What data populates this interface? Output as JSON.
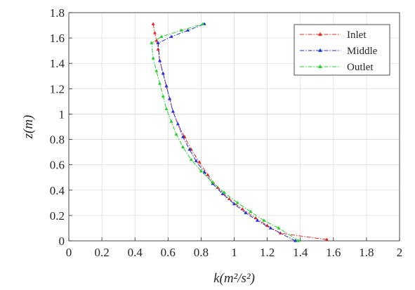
{
  "chart_data": {
    "type": "line",
    "title": "",
    "xlabel": "k(m²/s²)",
    "ylabel": "z(m)",
    "xlim": [
      0,
      2
    ],
    "ylim": [
      0,
      1.8
    ],
    "xticks": [
      0,
      0.2,
      0.4,
      0.6,
      0.8,
      1,
      1.2,
      1.4,
      1.6,
      1.8,
      2
    ],
    "yticks": [
      0,
      0.2,
      0.4,
      0.6,
      0.8,
      1,
      1.2,
      1.4,
      1.6,
      1.8
    ],
    "xtick_labels": [
      "0",
      "0.2",
      "0.4",
      "0.6",
      "0.8",
      "1",
      "1.2",
      "1.4",
      "1.6",
      "1.8",
      "2"
    ],
    "ytick_labels": [
      "0",
      "0.2",
      "0.4",
      "0.6",
      "0.8",
      "1",
      "1.2",
      "1.4",
      "1.6",
      "1.8"
    ],
    "grid": true,
    "legend_position": "top-right",
    "series": [
      {
        "name": "Inlet",
        "color": "#e0271f",
        "marker": "triangle",
        "x": [
          1.56,
          1.28,
          1.2,
          1.13,
          1.05,
          0.97,
          0.9,
          0.84,
          0.79,
          0.74,
          0.7,
          0.66,
          0.63,
          0.61,
          0.59,
          0.57,
          0.55,
          0.54,
          0.53,
          0.52,
          0.51
        ],
        "y": [
          0.01,
          0.06,
          0.12,
          0.18,
          0.25,
          0.33,
          0.42,
          0.52,
          0.62,
          0.72,
          0.82,
          0.92,
          1.02,
          1.12,
          1.22,
          1.32,
          1.42,
          1.51,
          1.58,
          1.64,
          1.71
        ]
      },
      {
        "name": "Middle",
        "color": "#1f2fd4",
        "marker": "triangle",
        "x": [
          1.37,
          1.22,
          1.14,
          1.07,
          1.0,
          0.93,
          0.87,
          0.82,
          0.77,
          0.73,
          0.69,
          0.66,
          0.63,
          0.61,
          0.59,
          0.57,
          0.55,
          0.54,
          0.62,
          0.72,
          0.82
        ],
        "y": [
          0.0,
          0.1,
          0.16,
          0.22,
          0.29,
          0.37,
          0.45,
          0.54,
          0.63,
          0.72,
          0.82,
          0.92,
          1.02,
          1.12,
          1.22,
          1.32,
          1.42,
          1.56,
          1.61,
          1.66,
          1.71
        ]
      },
      {
        "name": "Outlet",
        "color": "#22d02a",
        "marker": "triangle",
        "x": [
          1.39,
          1.27,
          1.18,
          1.1,
          1.02,
          0.94,
          0.87,
          0.8,
          0.74,
          0.69,
          0.65,
          0.62,
          0.59,
          0.57,
          0.55,
          0.53,
          0.51,
          0.5,
          0.56,
          0.68,
          0.81
        ],
        "y": [
          0.0,
          0.1,
          0.16,
          0.23,
          0.3,
          0.38,
          0.46,
          0.55,
          0.64,
          0.74,
          0.84,
          0.94,
          1.04,
          1.14,
          1.24,
          1.34,
          1.44,
          1.56,
          1.61,
          1.66,
          1.71
        ]
      }
    ]
  }
}
